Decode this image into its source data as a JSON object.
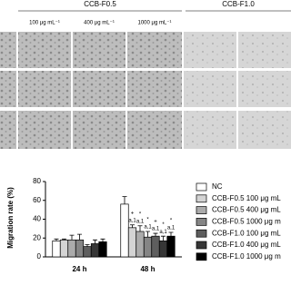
{
  "figure": {
    "groups": [
      "CCB-F0.5",
      "CCB-F1.0"
    ],
    "concentrations": [
      "100 μg mL⁻¹",
      "400 μg mL⁻¹",
      "1000 μg mL⁻¹"
    ]
  },
  "chart_data": {
    "type": "bar",
    "ylabel": "Migration rate (%)",
    "categories": [
      "24 h",
      "48 h"
    ],
    "series": [
      {
        "name": "NC",
        "color": "#ffffff",
        "values": [
          17,
          56
        ],
        "errors": [
          2,
          8
        ],
        "labels": [
          null,
          null
        ],
        "symbols": [
          null,
          null
        ]
      },
      {
        "name": "CCB-F0.5 100 μg mL",
        "color": "#d4d4d4",
        "values": [
          18,
          31
        ],
        "errors": [
          1,
          3
        ],
        "labels": [
          null,
          "a,1"
        ],
        "symbols": [
          null,
          "+"
        ]
      },
      {
        "name": "CCB-F0.5 400 μg mL",
        "color": "#ababab",
        "values": [
          18,
          27
        ],
        "errors": [
          5,
          6
        ],
        "labels": [
          null,
          "a,1"
        ],
        "symbols": [
          null,
          "*"
        ]
      },
      {
        "name": "CCB-F0.5 1000 μg m",
        "color": "#858585",
        "values": [
          18,
          21
        ],
        "errors": [
          6,
          6
        ],
        "labels": [
          null,
          "a,1"
        ],
        "symbols": [
          null,
          "*"
        ]
      },
      {
        "name": "CCB-F1.0 100 μg mL",
        "color": "#5e5e5e",
        "values": [
          11,
          22
        ],
        "errors": [
          2,
          3
        ],
        "labels": [
          null,
          "a,1"
        ],
        "symbols": [
          null,
          "+"
        ]
      },
      {
        "name": "CCB-F1.0 400 μg mL",
        "color": "#363636",
        "values": [
          14,
          17
        ],
        "errors": [
          4,
          5
        ],
        "labels": [
          null,
          "a,1"
        ],
        "symbols": [
          null,
          "*"
        ]
      },
      {
        "name": "CCB-F1.0 1000 μg m",
        "color": "#000000",
        "values": [
          16,
          22
        ],
        "errors": [
          3,
          4
        ],
        "labels": [
          null,
          "a,1"
        ],
        "symbols": [
          null,
          "*"
        ]
      }
    ],
    "ylim": [
      0,
      80
    ],
    "yticks": [
      0,
      20,
      40,
      60,
      80
    ]
  }
}
